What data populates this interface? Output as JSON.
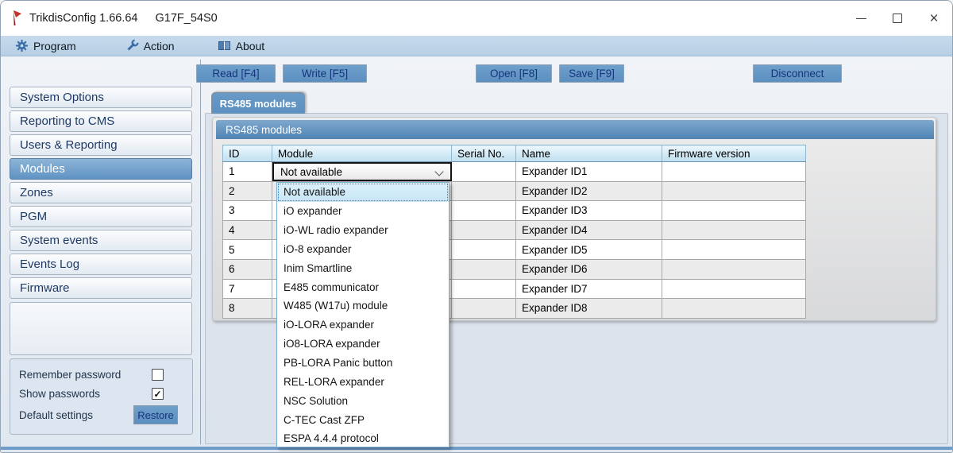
{
  "window": {
    "title": "TrikdisConfig 1.66.64",
    "device": "G17F_54S0",
    "minimize_glyph": "",
    "close_glyph": "×"
  },
  "menu": {
    "program": "Program",
    "action": "Action",
    "about": "About"
  },
  "toolbar": {
    "read": "Read [F4]",
    "write": "Write [F5]",
    "open": "Open [F8]",
    "save": "Save [F9]",
    "disconnect": "Disconnect"
  },
  "sidebar": {
    "items": [
      {
        "label": "System Options",
        "selected": false
      },
      {
        "label": "Reporting to CMS",
        "selected": false
      },
      {
        "label": "Users & Reporting",
        "selected": false
      },
      {
        "label": "Modules",
        "selected": true
      },
      {
        "label": "Zones",
        "selected": false
      },
      {
        "label": "PGM",
        "selected": false
      },
      {
        "label": "System events",
        "selected": false
      },
      {
        "label": "Events Log",
        "selected": false
      },
      {
        "label": "Firmware",
        "selected": false
      }
    ]
  },
  "bottom_panel": {
    "remember_label": "Remember password",
    "remember_checked": false,
    "remember_glyph": "",
    "show_label": "Show passwords",
    "show_checked": true,
    "show_glyph": "✓",
    "default_label": "Default settings",
    "restore_label": "Restore"
  },
  "main": {
    "tab_label": "RS485 modules",
    "group_title": "RS485 modules",
    "table": {
      "columns": [
        "ID",
        "Module",
        "Serial No.",
        "Name",
        "Firmware version"
      ],
      "rows": [
        {
          "id": "1",
          "module": "",
          "serial": "",
          "name": "Expander ID1",
          "firmware": ""
        },
        {
          "id": "2",
          "module": "",
          "serial": "",
          "name": "Expander ID2",
          "firmware": ""
        },
        {
          "id": "3",
          "module": "",
          "serial": "",
          "name": "Expander ID3",
          "firmware": ""
        },
        {
          "id": "4",
          "module": "",
          "serial": "",
          "name": "Expander ID4",
          "firmware": ""
        },
        {
          "id": "5",
          "module": "",
          "serial": "",
          "name": "Expander ID5",
          "firmware": ""
        },
        {
          "id": "6",
          "module": "",
          "serial": "",
          "name": "Expander ID6",
          "firmware": ""
        },
        {
          "id": "7",
          "module": "",
          "serial": "",
          "name": "Expander ID7",
          "firmware": ""
        },
        {
          "id": "8",
          "module": "",
          "serial": "",
          "name": "Expander ID8",
          "firmware": ""
        }
      ]
    },
    "combobox": {
      "value": "Not available"
    },
    "dropdown": {
      "items": [
        {
          "label": "Not available",
          "selected": true
        },
        {
          "label": "iO expander",
          "selected": false
        },
        {
          "label": "iO-WL radio expander",
          "selected": false
        },
        {
          "label": "iO-8 expander",
          "selected": false
        },
        {
          "label": "Inim Smartline",
          "selected": false
        },
        {
          "label": "E485 communicator",
          "selected": false
        },
        {
          "label": "W485 (W17u) module",
          "selected": false
        },
        {
          "label": "iO-LORA expander",
          "selected": false
        },
        {
          "label": "iO8-LORA expander",
          "selected": false
        },
        {
          "label": "PB-LORA Panic button",
          "selected": false
        },
        {
          "label": "REL-LORA expander",
          "selected": false
        },
        {
          "label": "NSC Solution",
          "selected": false
        },
        {
          "label": "C-TEC Cast ZFP",
          "selected": false
        },
        {
          "label": "ESPA 4.4.4 protocol",
          "selected": false
        }
      ]
    }
  },
  "colors": {
    "button_blue": "#6fa0cb",
    "button_text": "#16347c",
    "selected_blue": "#6093c3",
    "tab_blue": "#5c90c0",
    "group_header_blue": "#5083b3",
    "table_header_blue": "#bedfee",
    "dropdown_highlight": "#c8e6f7",
    "menu_bar": "#c6daec",
    "logo_red": "#c5352c"
  }
}
